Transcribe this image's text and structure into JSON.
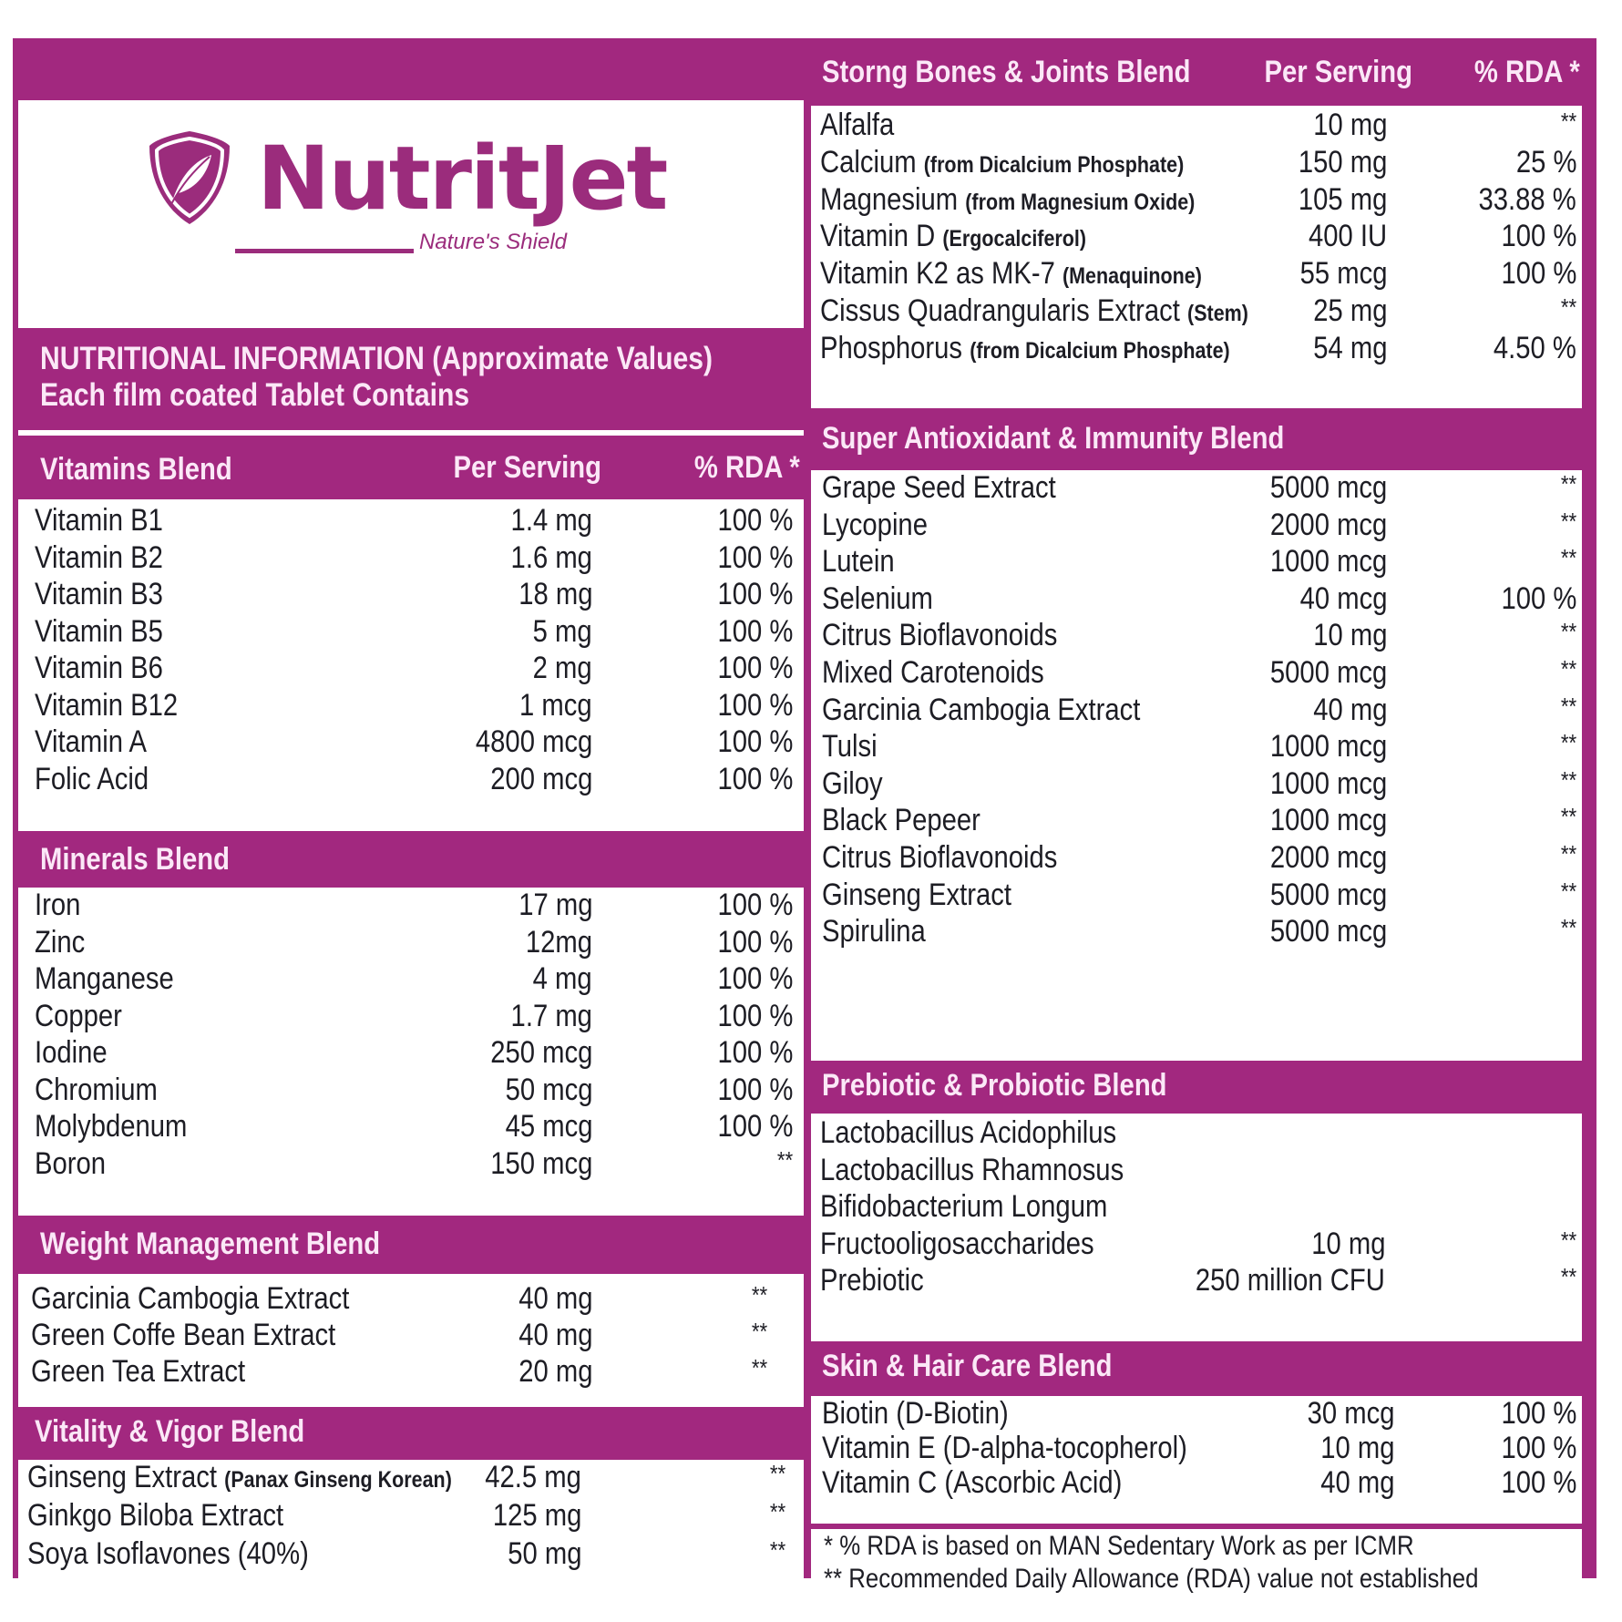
{
  "brand": {
    "name": "NutritJet",
    "tagline": "Nature's Shield",
    "accent_color": "#a2287f",
    "icon": "leaf-shield-icon"
  },
  "info": {
    "line1": "NUTRITIONAL INFORMATION (Approximate Values)",
    "line2": "Each film coated Tablet Contains"
  },
  "columns": {
    "per_serving": "Per Serving",
    "rda": "% RDA *"
  },
  "left_sections": [
    {
      "title": "Vitamins Blend",
      "show_columns": true,
      "items": [
        {
          "name": "Vitamin B1",
          "note": "",
          "amount": "1.4 mg",
          "rda": "100 %"
        },
        {
          "name": "Vitamin B2",
          "note": "",
          "amount": "1.6 mg",
          "rda": "100 %"
        },
        {
          "name": "Vitamin B3",
          "note": "",
          "amount": "18 mg",
          "rda": "100 %"
        },
        {
          "name": "Vitamin B5",
          "note": "",
          "amount": "5 mg",
          "rda": "100 %"
        },
        {
          "name": "Vitamin B6",
          "note": "",
          "amount": "2 mg",
          "rda": "100 %"
        },
        {
          "name": "Vitamin B12",
          "note": "",
          "amount": "1 mcg",
          "rda": "100 %"
        },
        {
          "name": "Vitamin A",
          "note": "",
          "amount": "4800 mcg",
          "rda": "100 %"
        },
        {
          "name": "Folic Acid",
          "note": "",
          "amount": "200 mcg",
          "rda": "100 %"
        }
      ]
    },
    {
      "title": "Minerals Blend",
      "items": [
        {
          "name": "Iron",
          "note": "",
          "amount": "17 mg",
          "rda": "100 %"
        },
        {
          "name": "Zinc",
          "note": "",
          "amount": "12mg",
          "rda": "100 %"
        },
        {
          "name": "Manganese",
          "note": "",
          "amount": "4 mg",
          "rda": "100 %"
        },
        {
          "name": "Copper",
          "note": "",
          "amount": "1.7 mg",
          "rda": "100 %"
        },
        {
          "name": "Iodine",
          "note": "",
          "amount": "250 mcg",
          "rda": "100 %"
        },
        {
          "name": "Chromium",
          "note": "",
          "amount": "50 mcg",
          "rda": "100 %"
        },
        {
          "name": "Molybdenum",
          "note": "",
          "amount": "45 mcg",
          "rda": "100 %"
        },
        {
          "name": "Boron",
          "note": "",
          "amount": "150 mcg",
          "rda": "**"
        }
      ]
    },
    {
      "title": "Weight Management Blend",
      "items": [
        {
          "name": "Garcinia Cambogia Extract",
          "note": "",
          "amount": "40 mg",
          "rda": "**"
        },
        {
          "name": "Green Coffe Bean Extract",
          "note": "",
          "amount": "40 mg",
          "rda": "**"
        },
        {
          "name": "Green Tea Extract",
          "note": "",
          "amount": "20 mg",
          "rda": "**"
        }
      ]
    },
    {
      "title": "Vitality & Vigor Blend",
      "items": [
        {
          "name": "Ginseng Extract",
          "note": "(Panax Ginseng Korean)",
          "amount": "42.5 mg",
          "rda": "**"
        },
        {
          "name": "Ginkgo Biloba Extract",
          "note": "",
          "amount": "125 mg",
          "rda": "**"
        },
        {
          "name": "Soya Isoflavones (40%)",
          "note": "",
          "amount": "50 mg",
          "rda": "**"
        }
      ]
    }
  ],
  "right_sections": [
    {
      "title": "Storng Bones & Joints Blend",
      "show_columns": true,
      "items": [
        {
          "name": "Alfalfa",
          "note": "",
          "amount": "10 mg",
          "rda": "**"
        },
        {
          "name": "Calcium",
          "note": "(from Dicalcium Phosphate)",
          "amount": "150 mg",
          "rda": "25 %"
        },
        {
          "name": "Magnesium",
          "note": "(from Magnesium Oxide)",
          "amount": "105 mg",
          "rda": "33.88 %"
        },
        {
          "name": "Vitamin D",
          "note": "(Ergocalciferol)",
          "amount": "400 IU",
          "rda": "100 %"
        },
        {
          "name": "Vitamin K2 as MK-7",
          "note": "(Menaquinone)",
          "amount": "55 mcg",
          "rda": "100 %"
        },
        {
          "name": "Cissus Quadrangularis Extract",
          "note": "(Stem)",
          "amount": "25 mg",
          "rda": "**"
        },
        {
          "name": "Phosphorus",
          "note": "(from Dicalcium Phosphate)",
          "amount": "54 mg",
          "rda": "4.50 %"
        }
      ]
    },
    {
      "title": "Super Antioxidant & Immunity Blend",
      "items": [
        {
          "name": "Grape Seed Extract",
          "note": "",
          "amount": "5000 mcg",
          "rda": "**"
        },
        {
          "name": "Lycopine",
          "note": "",
          "amount": "2000 mcg",
          "rda": "**"
        },
        {
          "name": "Lutein",
          "note": "",
          "amount": "1000 mcg",
          "rda": "**"
        },
        {
          "name": "Selenium",
          "note": "",
          "amount": "40 mcg",
          "rda": "100 %"
        },
        {
          "name": "Citrus Bioflavonoids",
          "note": "",
          "amount": "10 mg",
          "rda": "**"
        },
        {
          "name": "Mixed Carotenoids",
          "note": "",
          "amount": "5000 mcg",
          "rda": "**"
        },
        {
          "name": "Garcinia Cambogia Extract",
          "note": "",
          "amount": "40 mg",
          "rda": "**"
        },
        {
          "name": "Tulsi",
          "note": "",
          "amount": "1000 mcg",
          "rda": "**"
        },
        {
          "name": "Giloy",
          "note": "",
          "amount": "1000 mcg",
          "rda": "**"
        },
        {
          "name": "Black Pepeer",
          "note": "",
          "amount": "1000 mcg",
          "rda": "**"
        },
        {
          "name": "Citrus Bioflavonoids",
          "note": "",
          "amount": "2000 mcg",
          "rda": "**"
        },
        {
          "name": "Ginseng Extract",
          "note": "",
          "amount": "5000 mcg",
          "rda": "**"
        },
        {
          "name": "Spirulina",
          "note": "",
          "amount": "5000 mcg",
          "rda": "**"
        }
      ]
    },
    {
      "title": "Prebiotic & Probiotic Blend",
      "items": [
        {
          "name": "Lactobacillus Acidophilus",
          "note": "",
          "amount": "",
          "rda": ""
        },
        {
          "name": "Lactobacillus Rhamnosus",
          "note": "",
          "amount": "",
          "rda": ""
        },
        {
          "name": "Bifidobacterium Longum",
          "note": "",
          "amount": "",
          "rda": ""
        },
        {
          "name": "Fructooligosaccharides",
          "note": "",
          "amount": "10 mg",
          "rda": "**"
        },
        {
          "name": "Prebiotic",
          "note": "",
          "amount": "250 million CFU",
          "rda": "**"
        }
      ]
    },
    {
      "title": "Skin & Hair Care Blend",
      "items": [
        {
          "name": "Biotin (D-Biotin)",
          "note": "",
          "amount": "30 mcg",
          "rda": "100 %"
        },
        {
          "name": "Vitamin E (D-alpha-tocopherol)",
          "note": "",
          "amount": "10 mg",
          "rda": "100 %"
        },
        {
          "name": "Vitamin C (Ascorbic Acid)",
          "note": "",
          "amount": "40 mg",
          "rda": "100 %"
        }
      ]
    }
  ],
  "footnotes": [
    "* %  RDA is based on MAN Sedentary Work as per ICMR",
    "** Recommended Daily Allowance (RDA) value not established"
  ]
}
